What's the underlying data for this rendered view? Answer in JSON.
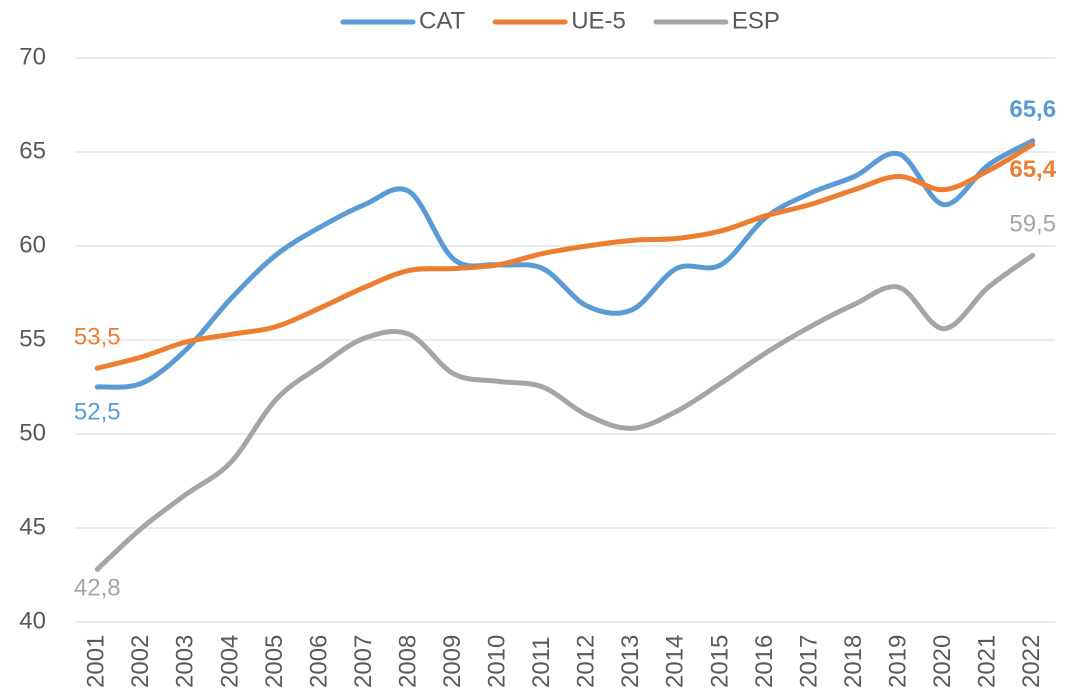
{
  "chart_data": {
    "type": "line",
    "categories": [
      "2001",
      "2002",
      "2003",
      "2004",
      "2005",
      "2006",
      "2007",
      "2008",
      "2009",
      "2010",
      "2011",
      "2012",
      "2013",
      "2014",
      "2015",
      "2016",
      "2017",
      "2018",
      "2019",
      "2020",
      "2021",
      "2022"
    ],
    "series": [
      {
        "name": "CAT",
        "color": "#5b9bd5",
        "values": [
          52.5,
          52.7,
          54.5,
          57.2,
          59.5,
          61.0,
          62.2,
          62.9,
          59.3,
          59.0,
          58.8,
          56.8,
          56.6,
          58.8,
          59.0,
          61.5,
          62.8,
          63.7,
          64.9,
          62.2,
          64.3,
          65.6
        ],
        "value_labels": [
          "52,5",
          null,
          null,
          null,
          null,
          null,
          null,
          null,
          null,
          null,
          null,
          null,
          null,
          null,
          null,
          null,
          null,
          null,
          null,
          null,
          null,
          "65,6"
        ]
      },
      {
        "name": "UE-5",
        "color": "#ed7d31",
        "values": [
          53.5,
          54.1,
          54.9,
          55.3,
          55.7,
          56.7,
          57.8,
          58.7,
          58.8,
          59.0,
          59.6,
          60.0,
          60.3,
          60.4,
          60.8,
          61.6,
          62.2,
          63.0,
          63.7,
          63.0,
          64.0,
          65.4
        ],
        "value_labels": [
          "53,5",
          null,
          null,
          null,
          null,
          null,
          null,
          null,
          null,
          null,
          null,
          null,
          null,
          null,
          null,
          null,
          null,
          null,
          null,
          null,
          null,
          "65,4"
        ]
      },
      {
        "name": "ESP",
        "color": "#a5a5a5",
        "values": [
          42.8,
          45.0,
          46.8,
          48.5,
          51.8,
          53.6,
          55.1,
          55.3,
          53.2,
          52.8,
          52.5,
          51.0,
          50.3,
          51.2,
          52.7,
          54.3,
          55.7,
          56.9,
          57.8,
          55.6,
          57.8,
          59.5
        ],
        "value_labels": [
          "42,8",
          null,
          null,
          null,
          null,
          null,
          null,
          null,
          null,
          null,
          null,
          null,
          null,
          null,
          null,
          null,
          null,
          null,
          null,
          null,
          null,
          "59,5"
        ]
      }
    ],
    "ylim": [
      40,
      70
    ],
    "yticks": [
      40,
      45,
      50,
      55,
      60,
      65,
      70
    ],
    "grid": true,
    "legend": "top"
  }
}
